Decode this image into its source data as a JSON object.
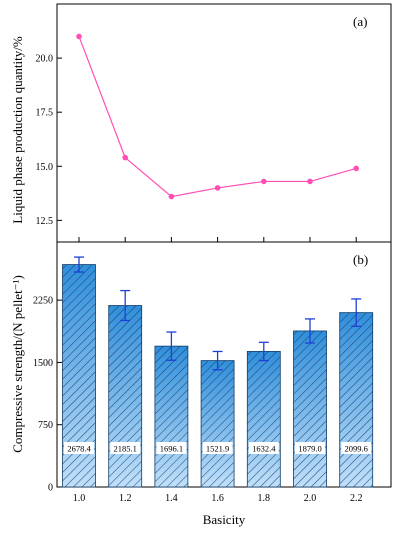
{
  "chart_data": [
    {
      "id": "a",
      "type": "line",
      "panel_label": "(a)",
      "ylabel": "Liquid phase production quantity/%",
      "ylim": [
        11.5,
        22.5
      ],
      "yticks": [
        "12.5",
        "15.0",
        "17.5",
        "20.0"
      ],
      "ytick_values": [
        12.5,
        15.0,
        17.5,
        20.0
      ],
      "x": [
        1.0,
        1.2,
        1.4,
        1.6,
        1.8,
        2.0,
        2.2
      ],
      "series": [
        {
          "values": [
            21.0,
            15.4,
            13.6,
            14.0,
            14.3,
            14.3,
            14.9
          ]
        }
      ],
      "color": "#ff4fb4",
      "grid": false
    },
    {
      "id": "b",
      "type": "bar",
      "panel_label": "(b)",
      "ylabel": "Compressive strength/(N pellet⁻¹)",
      "xlabel": "Basicity",
      "ylim": [
        0,
        2950
      ],
      "yticks": [
        "0",
        "750",
        "1500",
        "2250"
      ],
      "ytick_values": [
        0,
        750,
        1500,
        2250
      ],
      "categories": [
        "1.0",
        "1.2",
        "1.4",
        "1.6",
        "1.8",
        "2.0",
        "2.2"
      ],
      "values": [
        2678.4,
        2185.1,
        1696.1,
        1521.9,
        1632.4,
        1879.0,
        2099.6
      ],
      "data_labels": [
        "2678.4",
        "2185.1",
        "1696.1",
        "1521.9",
        "1632.4",
        "1879.0",
        "2099.6"
      ],
      "errors": [
        90,
        180,
        170,
        110,
        110,
        145,
        165
      ],
      "bar_color": "#2f8fdc",
      "bar_color_light": "#bfe0fb",
      "error_color": "#1f3fd8",
      "grid": false
    }
  ]
}
